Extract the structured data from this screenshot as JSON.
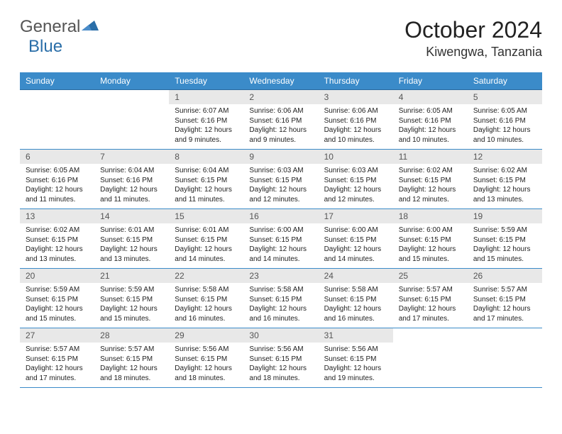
{
  "logo": {
    "text_left": "General",
    "text_right": "Blue"
  },
  "title": "October 2024",
  "location": "Kiwengwa, Tanzania",
  "colors": {
    "header_bg": "#3b8bc9",
    "header_text": "#ffffff",
    "daynum_bg": "#e8e8e8",
    "daynum_text": "#555555",
    "row_border": "#3b8bc9",
    "body_text": "#222222",
    "logo_gray": "#555555",
    "logo_blue": "#2a6ea8"
  },
  "day_headers": [
    "Sunday",
    "Monday",
    "Tuesday",
    "Wednesday",
    "Thursday",
    "Friday",
    "Saturday"
  ],
  "weeks": [
    [
      null,
      null,
      {
        "n": "1",
        "sunrise": "6:07 AM",
        "sunset": "6:16 PM",
        "daylight": "12 hours and 9 minutes."
      },
      {
        "n": "2",
        "sunrise": "6:06 AM",
        "sunset": "6:16 PM",
        "daylight": "12 hours and 9 minutes."
      },
      {
        "n": "3",
        "sunrise": "6:06 AM",
        "sunset": "6:16 PM",
        "daylight": "12 hours and 10 minutes."
      },
      {
        "n": "4",
        "sunrise": "6:05 AM",
        "sunset": "6:16 PM",
        "daylight": "12 hours and 10 minutes."
      },
      {
        "n": "5",
        "sunrise": "6:05 AM",
        "sunset": "6:16 PM",
        "daylight": "12 hours and 10 minutes."
      }
    ],
    [
      {
        "n": "6",
        "sunrise": "6:05 AM",
        "sunset": "6:16 PM",
        "daylight": "12 hours and 11 minutes."
      },
      {
        "n": "7",
        "sunrise": "6:04 AM",
        "sunset": "6:16 PM",
        "daylight": "12 hours and 11 minutes."
      },
      {
        "n": "8",
        "sunrise": "6:04 AM",
        "sunset": "6:15 PM",
        "daylight": "12 hours and 11 minutes."
      },
      {
        "n": "9",
        "sunrise": "6:03 AM",
        "sunset": "6:15 PM",
        "daylight": "12 hours and 12 minutes."
      },
      {
        "n": "10",
        "sunrise": "6:03 AM",
        "sunset": "6:15 PM",
        "daylight": "12 hours and 12 minutes."
      },
      {
        "n": "11",
        "sunrise": "6:02 AM",
        "sunset": "6:15 PM",
        "daylight": "12 hours and 12 minutes."
      },
      {
        "n": "12",
        "sunrise": "6:02 AM",
        "sunset": "6:15 PM",
        "daylight": "12 hours and 13 minutes."
      }
    ],
    [
      {
        "n": "13",
        "sunrise": "6:02 AM",
        "sunset": "6:15 PM",
        "daylight": "12 hours and 13 minutes."
      },
      {
        "n": "14",
        "sunrise": "6:01 AM",
        "sunset": "6:15 PM",
        "daylight": "12 hours and 13 minutes."
      },
      {
        "n": "15",
        "sunrise": "6:01 AM",
        "sunset": "6:15 PM",
        "daylight": "12 hours and 14 minutes."
      },
      {
        "n": "16",
        "sunrise": "6:00 AM",
        "sunset": "6:15 PM",
        "daylight": "12 hours and 14 minutes."
      },
      {
        "n": "17",
        "sunrise": "6:00 AM",
        "sunset": "6:15 PM",
        "daylight": "12 hours and 14 minutes."
      },
      {
        "n": "18",
        "sunrise": "6:00 AM",
        "sunset": "6:15 PM",
        "daylight": "12 hours and 15 minutes."
      },
      {
        "n": "19",
        "sunrise": "5:59 AM",
        "sunset": "6:15 PM",
        "daylight": "12 hours and 15 minutes."
      }
    ],
    [
      {
        "n": "20",
        "sunrise": "5:59 AM",
        "sunset": "6:15 PM",
        "daylight": "12 hours and 15 minutes."
      },
      {
        "n": "21",
        "sunrise": "5:59 AM",
        "sunset": "6:15 PM",
        "daylight": "12 hours and 15 minutes."
      },
      {
        "n": "22",
        "sunrise": "5:58 AM",
        "sunset": "6:15 PM",
        "daylight": "12 hours and 16 minutes."
      },
      {
        "n": "23",
        "sunrise": "5:58 AM",
        "sunset": "6:15 PM",
        "daylight": "12 hours and 16 minutes."
      },
      {
        "n": "24",
        "sunrise": "5:58 AM",
        "sunset": "6:15 PM",
        "daylight": "12 hours and 16 minutes."
      },
      {
        "n": "25",
        "sunrise": "5:57 AM",
        "sunset": "6:15 PM",
        "daylight": "12 hours and 17 minutes."
      },
      {
        "n": "26",
        "sunrise": "5:57 AM",
        "sunset": "6:15 PM",
        "daylight": "12 hours and 17 minutes."
      }
    ],
    [
      {
        "n": "27",
        "sunrise": "5:57 AM",
        "sunset": "6:15 PM",
        "daylight": "12 hours and 17 minutes."
      },
      {
        "n": "28",
        "sunrise": "5:57 AM",
        "sunset": "6:15 PM",
        "daylight": "12 hours and 18 minutes."
      },
      {
        "n": "29",
        "sunrise": "5:56 AM",
        "sunset": "6:15 PM",
        "daylight": "12 hours and 18 minutes."
      },
      {
        "n": "30",
        "sunrise": "5:56 AM",
        "sunset": "6:15 PM",
        "daylight": "12 hours and 18 minutes."
      },
      {
        "n": "31",
        "sunrise": "5:56 AM",
        "sunset": "6:15 PM",
        "daylight": "12 hours and 19 minutes."
      },
      null,
      null
    ]
  ],
  "labels": {
    "sunrise": "Sunrise: ",
    "sunset": "Sunset: ",
    "daylight": "Daylight: "
  }
}
